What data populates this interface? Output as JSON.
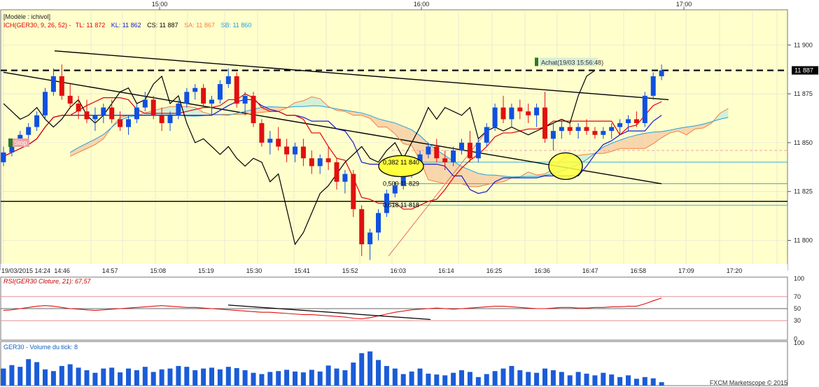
{
  "chart_data": {
    "type": "candlestick",
    "instrument": "GER30",
    "model_label": "[Modèle : ichivol]",
    "indicator_header": {
      "prefix": "ICH(GER30, 9, 26, 52) -",
      "items": [
        {
          "text": "TL: 11 872",
          "color": "#e00000"
        },
        {
          "text": "KL: 11 862",
          "color": "#1a1acc"
        },
        {
          "text": "CS: 11 887",
          "color": "#000000"
        },
        {
          "text": "SA: 11 867",
          "color": "#f08040"
        },
        {
          "text": "SB: 11 860",
          "color": "#20a0e0"
        }
      ]
    },
    "top_time_labels": [
      "15:00",
      "16:00",
      "17:00"
    ],
    "x_tick_labels": [
      "19/03/2015 14:24",
      "14:46",
      "14:57",
      "15:08",
      "15:19",
      "15:30",
      "15:41",
      "15:52",
      "16:03",
      "16:14",
      "16:25",
      "16:36",
      "16:47",
      "16:58",
      "17:09",
      "17:20"
    ],
    "y_ticks": [
      11800,
      11825,
      11850,
      11875,
      11900
    ],
    "y_tick_labels": [
      "11 800",
      "11 825",
      "11 850",
      "11 875",
      "11 900"
    ],
    "ylim": [
      11788,
      11918
    ],
    "current_price_label": "11 887",
    "current_price": 11887,
    "candles_ohlc": [
      [
        11840,
        11848,
        11838,
        11845
      ],
      [
        11845,
        11852,
        11843,
        11850
      ],
      [
        11850,
        11856,
        11848,
        11854
      ],
      [
        11854,
        11860,
        11852,
        11858
      ],
      [
        11858,
        11866,
        11856,
        11864
      ],
      [
        11864,
        11878,
        11862,
        11876
      ],
      [
        11876,
        11888,
        11874,
        11884
      ],
      [
        11884,
        11890,
        11872,
        11874
      ],
      [
        11874,
        11880,
        11868,
        11870
      ],
      [
        11870,
        11874,
        11862,
        11866
      ],
      [
        11866,
        11872,
        11860,
        11862
      ],
      [
        11862,
        11868,
        11856,
        11864
      ],
      [
        11864,
        11870,
        11860,
        11868
      ],
      [
        11868,
        11872,
        11860,
        11862
      ],
      [
        11862,
        11866,
        11856,
        11858
      ],
      [
        11858,
        11864,
        11854,
        11862
      ],
      [
        11862,
        11870,
        11860,
        11868
      ],
      [
        11868,
        11876,
        11866,
        11872
      ],
      [
        11872,
        11874,
        11862,
        11864
      ],
      [
        11864,
        11868,
        11856,
        11860
      ],
      [
        11860,
        11866,
        11856,
        11864
      ],
      [
        11864,
        11872,
        11862,
        11870
      ],
      [
        11870,
        11878,
        11868,
        11876
      ],
      [
        11876,
        11880,
        11872,
        11878
      ],
      [
        11878,
        11880,
        11868,
        11870
      ],
      [
        11870,
        11874,
        11864,
        11872
      ],
      [
        11872,
        11882,
        11870,
        11880
      ],
      [
        11880,
        11888,
        11878,
        11884
      ],
      [
        11884,
        11886,
        11868,
        11870
      ],
      [
        11870,
        11876,
        11864,
        11874
      ],
      [
        11874,
        11876,
        11858,
        11860
      ],
      [
        11860,
        11862,
        11848,
        11850
      ],
      [
        11850,
        11856,
        11844,
        11852
      ],
      [
        11852,
        11858,
        11846,
        11848
      ],
      [
        11848,
        11852,
        11840,
        11844
      ],
      [
        11844,
        11850,
        11840,
        11848
      ],
      [
        11848,
        11852,
        11838,
        11842
      ],
      [
        11842,
        11846,
        11834,
        11838
      ],
      [
        11838,
        11844,
        11834,
        11842
      ],
      [
        11842,
        11848,
        11836,
        11840
      ],
      [
        11840,
        11842,
        11826,
        11830
      ],
      [
        11830,
        11836,
        11824,
        11834
      ],
      [
        11834,
        11836,
        11812,
        11816
      ],
      [
        11816,
        11818,
        11792,
        11798
      ],
      [
        11798,
        11806,
        11790,
        11804
      ],
      [
        11804,
        11816,
        11800,
        11814
      ],
      [
        11814,
        11826,
        11812,
        11824
      ],
      [
        11824,
        11830,
        11822,
        11828
      ],
      [
        11828,
        11836,
        11826,
        11834
      ],
      [
        11834,
        11842,
        11832,
        11840
      ],
      [
        11840,
        11846,
        11838,
        11844
      ],
      [
        11844,
        11850,
        11842,
        11848
      ],
      [
        11848,
        11852,
        11840,
        11842
      ],
      [
        11842,
        11846,
        11836,
        11840
      ],
      [
        11840,
        11848,
        11838,
        11846
      ],
      [
        11846,
        11852,
        11844,
        11850
      ],
      [
        11850,
        11856,
        11840,
        11842
      ],
      [
        11842,
        11852,
        11840,
        11850
      ],
      [
        11850,
        11860,
        11848,
        11858
      ],
      [
        11858,
        11870,
        11856,
        11868
      ],
      [
        11868,
        11874,
        11860,
        11862
      ],
      [
        11862,
        11870,
        11858,
        11868
      ],
      [
        11868,
        11872,
        11862,
        11866
      ],
      [
        11866,
        11870,
        11860,
        11864
      ],
      [
        11864,
        11870,
        11858,
        11868
      ],
      [
        11868,
        11876,
        11850,
        11852
      ],
      [
        11852,
        11860,
        11846,
        11856
      ],
      [
        11856,
        11862,
        11852,
        11858
      ],
      [
        11858,
        11860,
        11854,
        11856
      ],
      [
        11856,
        11860,
        11852,
        11858
      ],
      [
        11858,
        11862,
        11854,
        11856
      ],
      [
        11856,
        11858,
        11852,
        11854
      ],
      [
        11854,
        11858,
        11852,
        11856
      ],
      [
        11856,
        11860,
        11852,
        11858
      ],
      [
        11858,
        11862,
        11854,
        11860
      ],
      [
        11860,
        11864,
        11856,
        11862
      ],
      [
        11862,
        11866,
        11858,
        11860
      ],
      [
        11860,
        11876,
        11858,
        11874
      ],
      [
        11874,
        11886,
        11872,
        11884
      ],
      [
        11884,
        11890,
        11882,
        11887
      ]
    ],
    "horizontal_levels": [
      {
        "name": "dashed-resistance",
        "value": 11887
      },
      {
        "name": "support-line",
        "value": 11820
      }
    ],
    "annotations": {
      "buy_label": "Achat(19/03 15:56:48)",
      "stop_label": "Stop",
      "fib_labels": [
        "0,382 11 840",
        "0,500 11 829",
        "0,618 11 818"
      ]
    },
    "rsi": {
      "label": "RSI(GER30 Cloture, 21): 67,57",
      "levels": [
        30,
        50,
        70
      ],
      "level_labels": [
        "30",
        "50",
        "70"
      ],
      "scale_labels": [
        "100",
        "0"
      ],
      "values": [
        47,
        48,
        50,
        52,
        54,
        55,
        54,
        52,
        50,
        49,
        48,
        47,
        48,
        49,
        50,
        51,
        52,
        53,
        54,
        55,
        54,
        53,
        52,
        52,
        51,
        50,
        49,
        48,
        47,
        46,
        45,
        44,
        44,
        43,
        42,
        41,
        40,
        40,
        39,
        38,
        37,
        36,
        34,
        33,
        35,
        38,
        41,
        44,
        46,
        48,
        49,
        50,
        51,
        50,
        49,
        50,
        51,
        52,
        53,
        54,
        54,
        53,
        52,
        51,
        50,
        50,
        51,
        52,
        52,
        51,
        51,
        52,
        52,
        53,
        53,
        54,
        54,
        58,
        63,
        67.57
      ]
    },
    "volume": {
      "label": "GER30 - Volume du tick: 8",
      "scale_label": "100",
      "values": [
        40,
        48,
        44,
        62,
        55,
        38,
        34,
        46,
        50,
        42,
        36,
        30,
        40,
        42,
        31,
        40,
        36,
        44,
        32,
        38,
        40,
        46,
        44,
        36,
        40,
        42,
        38,
        44,
        41,
        36,
        30,
        27,
        32,
        34,
        37,
        33,
        31,
        37,
        33,
        47,
        40,
        36,
        54,
        76,
        80,
        60,
        46,
        40,
        27,
        33,
        40,
        28,
        26,
        24,
        30,
        36,
        32,
        20,
        27,
        34,
        40,
        46,
        36,
        32,
        30,
        40,
        36,
        32,
        24,
        32,
        28,
        24,
        30,
        26,
        20,
        24,
        16,
        20,
        17,
        8
      ]
    },
    "copyright": "FXCM Marketscope © 2015"
  }
}
